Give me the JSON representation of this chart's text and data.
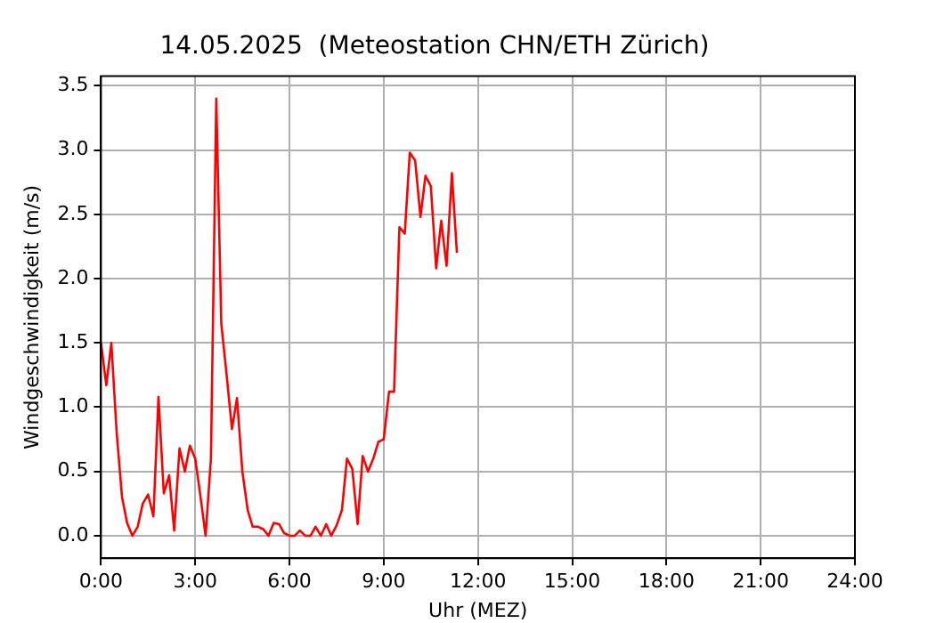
{
  "chart_data": {
    "type": "line",
    "title": "14.05.2025  (Meteostation CHN/ETH Zürich)",
    "xlabel": "Uhr (MEZ)",
    "ylabel": "Windgeschwindigkeit (m/s)",
    "x": [
      0,
      0.17,
      0.33,
      0.5,
      0.67,
      0.83,
      1,
      1.17,
      1.33,
      1.5,
      1.67,
      1.83,
      2,
      2.17,
      2.33,
      2.5,
      2.67,
      2.83,
      3,
      3.17,
      3.33,
      3.5,
      3.67,
      3.83,
      4,
      4.17,
      4.33,
      4.5,
      4.67,
      4.83,
      5,
      5.17,
      5.33,
      5.5,
      5.67,
      5.83,
      6,
      6.17,
      6.33,
      6.5,
      6.67,
      6.83,
      7,
      7.17,
      7.33,
      7.5,
      7.67,
      7.83,
      8,
      8.17,
      8.33,
      8.5,
      8.67,
      8.83,
      9,
      9.17,
      9.33,
      9.5,
      9.67,
      9.83,
      10,
      10.17,
      10.33,
      10.5,
      10.67,
      10.83,
      11,
      11.17,
      11.33
    ],
    "series": [
      {
        "color": "#ff0000",
        "values": [
          1.5,
          1.17,
          1.5,
          0.8,
          0.3,
          0.1,
          0.0,
          0.07,
          0.25,
          0.32,
          0.15,
          1.08,
          0.33,
          0.47,
          0.04,
          0.68,
          0.5,
          0.7,
          0.6,
          0.3,
          0.0,
          0.6,
          3.4,
          1.65,
          1.25,
          0.83,
          1.07,
          0.5,
          0.2,
          0.07,
          0.07,
          0.05,
          0.0,
          0.1,
          0.09,
          0.02,
          0.0,
          0.0,
          0.04,
          0.0,
          0.0,
          0.07,
          0.0,
          0.09,
          0.0,
          0.08,
          0.2,
          0.6,
          0.52,
          0.09,
          0.62,
          0.5,
          0.6,
          0.73,
          0.75,
          1.12,
          1.12,
          2.4,
          2.35,
          2.98,
          2.92,
          2.48,
          2.8,
          2.72,
          2.08,
          2.45,
          2.1,
          2.82,
          2.2
        ]
      }
    ],
    "xlim": [
      0,
      24
    ],
    "xticks": [
      {
        "value": 0,
        "label": "0:00"
      },
      {
        "value": 3,
        "label": "3:00"
      },
      {
        "value": 6,
        "label": "6:00"
      },
      {
        "value": 9,
        "label": "9:00"
      },
      {
        "value": 12,
        "label": "12:00"
      },
      {
        "value": 15,
        "label": "15:00"
      },
      {
        "value": 18,
        "label": "18:00"
      },
      {
        "value": 21,
        "label": "21:00"
      },
      {
        "value": 24,
        "label": "24:00"
      }
    ],
    "ylim": [
      -0.175,
      3.575
    ],
    "yticks": [
      {
        "value": 0,
        "label": "0.0"
      },
      {
        "value": 0.5,
        "label": "0.5"
      },
      {
        "value": 1,
        "label": "1.0"
      },
      {
        "value": 1.5,
        "label": "1.5"
      },
      {
        "value": 2,
        "label": "2.0"
      },
      {
        "value": 2.5,
        "label": "2.5"
      },
      {
        "value": 3,
        "label": "3.0"
      },
      {
        "value": 3.5,
        "label": "3.5"
      }
    ],
    "grid": true,
    "marker": "none",
    "line_style": "solid"
  }
}
